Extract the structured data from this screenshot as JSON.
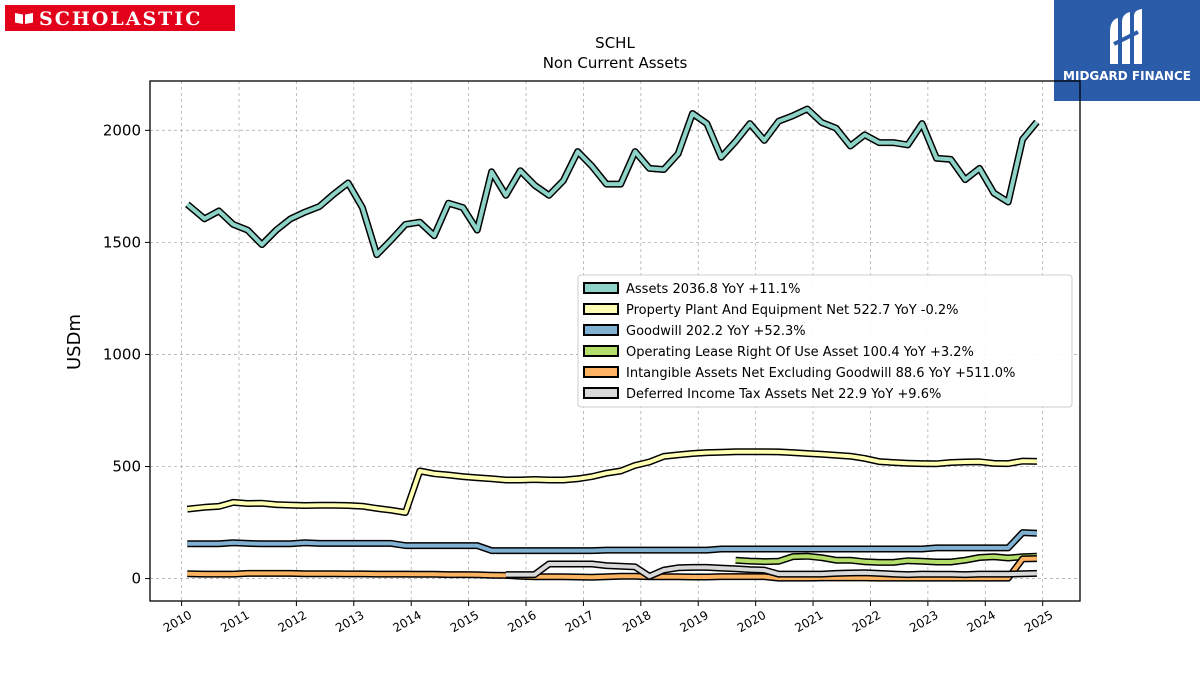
{
  "header": {
    "left_logo": "SCHOLASTIC",
    "left_logo_icon": "open-book-icon",
    "right_logo": "MIDGARD FINANCE",
    "right_logo_icon": "midgard-emblem-icon"
  },
  "colors": {
    "scholastic_red": "#e3001b",
    "midgard_blue": "#2a5caa"
  },
  "chart_data": {
    "type": "line",
    "title": "SCHL",
    "subtitle": "Non Current  Assets",
    "xlabel": "",
    "ylabel": "USDm",
    "xlim": [
      2009.45,
      2025.65
    ],
    "ylim": [
      -100,
      2220
    ],
    "x_ticks": [
      2010,
      2011,
      2012,
      2013,
      2014,
      2015,
      2016,
      2017,
      2018,
      2019,
      2020,
      2021,
      2022,
      2023,
      2024,
      2025
    ],
    "x_tick_labels": [
      "2010",
      "2011",
      "2012",
      "2013",
      "2014",
      "2015",
      "2016",
      "2017",
      "2018",
      "2019",
      "2020",
      "2021",
      "2022",
      "2023",
      "2024",
      "2025"
    ],
    "y_ticks": [
      0,
      500,
      1000,
      1500,
      2000
    ],
    "y_tick_labels": [
      "0",
      "500",
      "1000",
      "1500",
      "2000"
    ],
    "grid": true,
    "legend_position": "right",
    "series": [
      {
        "name": "Assets",
        "legend": "Assets  2036.8 YoY +11.1%",
        "color": "#8dd3c7",
        "x": [
          2010.1,
          2010.4,
          2010.65,
          2010.9,
          2011.15,
          2011.4,
          2011.65,
          2011.9,
          2012.15,
          2012.4,
          2012.65,
          2012.9,
          2013.15,
          2013.4,
          2013.65,
          2013.9,
          2014.15,
          2014.4,
          2014.65,
          2014.9,
          2015.15,
          2015.4,
          2015.65,
          2015.9,
          2016.15,
          2016.4,
          2016.65,
          2016.9,
          2017.15,
          2017.4,
          2017.65,
          2017.9,
          2018.15,
          2018.4,
          2018.65,
          2018.9,
          2019.15,
          2019.4,
          2019.65,
          2019.9,
          2020.15,
          2020.4,
          2020.65,
          2020.9,
          2021.15,
          2021.4,
          2021.65,
          2021.9,
          2022.15,
          2022.4,
          2022.65,
          2022.9,
          2023.15,
          2023.4,
          2023.65,
          2023.9,
          2024.15,
          2024.4,
          2024.65,
          2024.9
        ],
        "values": [
          1670,
          1605,
          1640,
          1580,
          1555,
          1490,
          1555,
          1605,
          1635,
          1660,
          1715,
          1765,
          1655,
          1445,
          1510,
          1580,
          1590,
          1530,
          1675,
          1655,
          1555,
          1815,
          1710,
          1820,
          1755,
          1710,
          1775,
          1905,
          1840,
          1760,
          1760,
          1905,
          1830,
          1825,
          1895,
          2075,
          2030,
          1880,
          1950,
          2030,
          1955,
          2040,
          2065,
          2095,
          2035,
          2010,
          1930,
          1980,
          1945,
          1945,
          1935,
          2030,
          1875,
          1870,
          1780,
          1830,
          1720,
          1680,
          1960,
          2037
        ]
      },
      {
        "name": "Property Plant And Equipment Net",
        "legend": "Property Plant And Equipment Net  522.7 YoY -0.2%",
        "color": "#ffffb3",
        "x": [
          2010.1,
          2010.4,
          2010.65,
          2010.9,
          2011.15,
          2011.4,
          2011.65,
          2011.9,
          2012.15,
          2012.4,
          2012.65,
          2012.9,
          2013.15,
          2013.4,
          2013.65,
          2013.9,
          2014.15,
          2014.4,
          2014.65,
          2014.9,
          2015.15,
          2015.4,
          2015.65,
          2015.9,
          2016.15,
          2016.4,
          2016.65,
          2016.9,
          2017.15,
          2017.4,
          2017.65,
          2017.9,
          2018.15,
          2018.4,
          2018.65,
          2018.9,
          2019.15,
          2019.4,
          2019.65,
          2019.9,
          2020.15,
          2020.4,
          2020.65,
          2020.9,
          2021.15,
          2021.4,
          2021.65,
          2021.9,
          2022.15,
          2022.4,
          2022.65,
          2022.9,
          2023.15,
          2023.4,
          2023.65,
          2023.9,
          2024.15,
          2024.4,
          2024.65,
          2024.9
        ],
        "values": [
          310,
          318,
          322,
          340,
          335,
          336,
          330,
          328,
          326,
          327,
          327,
          326,
          323,
          313,
          305,
          295,
          480,
          468,
          462,
          455,
          450,
          445,
          440,
          440,
          442,
          440,
          440,
          445,
          455,
          470,
          480,
          505,
          520,
          545,
          552,
          558,
          562,
          564,
          566,
          566,
          566,
          565,
          562,
          558,
          555,
          550,
          546,
          536,
          522,
          518,
          515,
          513,
          512,
          518,
          520,
          521,
          514,
          513,
          524,
          523
        ]
      },
      {
        "name": "Goodwill",
        "legend": "Goodwill  202.2 YoY +52.3%",
        "color": "#80b1d3",
        "x": [
          2010.1,
          2010.4,
          2010.65,
          2010.9,
          2011.15,
          2011.4,
          2011.65,
          2011.9,
          2012.15,
          2012.4,
          2012.65,
          2012.9,
          2013.15,
          2013.4,
          2013.65,
          2013.9,
          2014.15,
          2014.4,
          2014.65,
          2014.9,
          2015.15,
          2015.4,
          2015.65,
          2015.9,
          2016.15,
          2016.4,
          2016.65,
          2016.9,
          2017.15,
          2017.4,
          2017.65,
          2017.9,
          2018.15,
          2018.4,
          2018.65,
          2018.9,
          2019.15,
          2019.4,
          2019.65,
          2019.9,
          2020.15,
          2020.4,
          2020.65,
          2020.9,
          2021.15,
          2021.4,
          2021.65,
          2021.9,
          2022.15,
          2022.4,
          2022.65,
          2022.9,
          2023.15,
          2023.4,
          2023.65,
          2023.9,
          2024.15,
          2024.4,
          2024.65,
          2024.9
        ],
        "values": [
          155,
          155,
          155,
          160,
          157,
          155,
          155,
          155,
          160,
          157,
          157,
          157,
          157,
          157,
          157,
          147,
          147,
          147,
          147,
          147,
          147,
          125,
          125,
          125,
          125,
          125,
          125,
          125,
          125,
          127,
          127,
          127,
          127,
          127,
          127,
          127,
          127,
          132,
          132,
          132,
          132,
          132,
          132,
          132,
          132,
          132,
          132,
          132,
          132,
          132,
          132,
          132,
          137,
          137,
          137,
          137,
          137,
          137,
          205,
          202
        ]
      },
      {
        "name": "Operating Lease Right Of Use Asset",
        "legend": "Operating Lease Right Of Use Asset  100.4 YoY +3.2%",
        "color": "#b3de69",
        "x": [
          2019.65,
          2019.9,
          2020.15,
          2020.4,
          2020.65,
          2020.9,
          2021.15,
          2021.4,
          2021.65,
          2021.9,
          2022.15,
          2022.4,
          2022.65,
          2022.9,
          2023.15,
          2023.4,
          2023.65,
          2023.9,
          2024.15,
          2024.4,
          2024.65,
          2024.9
        ],
        "values": [
          82,
          78,
          76,
          77,
          98,
          100,
          93,
          82,
          82,
          75,
          72,
          72,
          80,
          77,
          74,
          74,
          82,
          94,
          97,
          92,
          97,
          100
        ]
      },
      {
        "name": "Intangible Assets Net Excluding Goodwill",
        "legend": "Intangible Assets Net Excluding Goodwill  88.6 YoY +511.0%",
        "color": "#fdb462",
        "x": [
          2010.1,
          2010.4,
          2010.65,
          2010.9,
          2011.15,
          2011.4,
          2011.65,
          2011.9,
          2012.15,
          2012.4,
          2012.65,
          2012.9,
          2013.15,
          2013.4,
          2013.65,
          2013.9,
          2014.15,
          2014.4,
          2014.65,
          2014.9,
          2015.15,
          2015.4,
          2015.65,
          2015.9,
          2016.15,
          2016.4,
          2016.65,
          2016.9,
          2017.15,
          2017.4,
          2017.65,
          2017.9,
          2018.15,
          2018.4,
          2018.65,
          2018.9,
          2019.15,
          2019.4,
          2019.65,
          2019.9,
          2020.15,
          2020.4,
          2020.65,
          2020.9,
          2021.15,
          2021.4,
          2021.65,
          2021.9,
          2022.15,
          2022.4,
          2022.65,
          2022.9,
          2023.15,
          2023.4,
          2023.65,
          2023.9,
          2024.15,
          2024.4,
          2024.65,
          2024.9
        ],
        "values": [
          22,
          20,
          20,
          20,
          23,
          23,
          23,
          23,
          22,
          22,
          22,
          21,
          21,
          20,
          20,
          20,
          19,
          19,
          18,
          18,
          17,
          15,
          14,
          10,
          8,
          8,
          8,
          7,
          6,
          8,
          10,
          10,
          8,
          8,
          8,
          7,
          7,
          9,
          9,
          9,
          9,
          2,
          2,
          2,
          3,
          3,
          3,
          3,
          2,
          2,
          2,
          2,
          2,
          2,
          2,
          2,
          2,
          2,
          88,
          89
        ]
      },
      {
        "name": "Deferred Income Tax Assets Net",
        "legend": "Deferred Income Tax Assets Net  22.9 YoY +9.6%",
        "color": "#d9d9d9",
        "x": [
          2015.65,
          2015.9,
          2016.15,
          2016.4,
          2016.65,
          2016.9,
          2017.15,
          2017.4,
          2017.65,
          2017.9,
          2018.15,
          2018.4,
          2018.65,
          2018.9,
          2019.15,
          2019.4,
          2019.65,
          2019.9,
          2020.15,
          2020.4,
          2020.65,
          2020.9,
          2021.15,
          2021.4,
          2021.65,
          2021.9,
          2022.15,
          2022.4,
          2022.65,
          2022.9,
          2023.15,
          2023.4,
          2023.65,
          2023.9,
          2024.15,
          2024.4,
          2024.65,
          2024.9
        ],
        "values": [
          18,
          18,
          18,
          65,
          65,
          65,
          65,
          58,
          55,
          52,
          10,
          38,
          48,
          50,
          50,
          47,
          44,
          40,
          38,
          20,
          20,
          20,
          20,
          23,
          25,
          26,
          23,
          20,
          18,
          20,
          19,
          19,
          18,
          20,
          20,
          20,
          22,
          23
        ]
      }
    ]
  }
}
